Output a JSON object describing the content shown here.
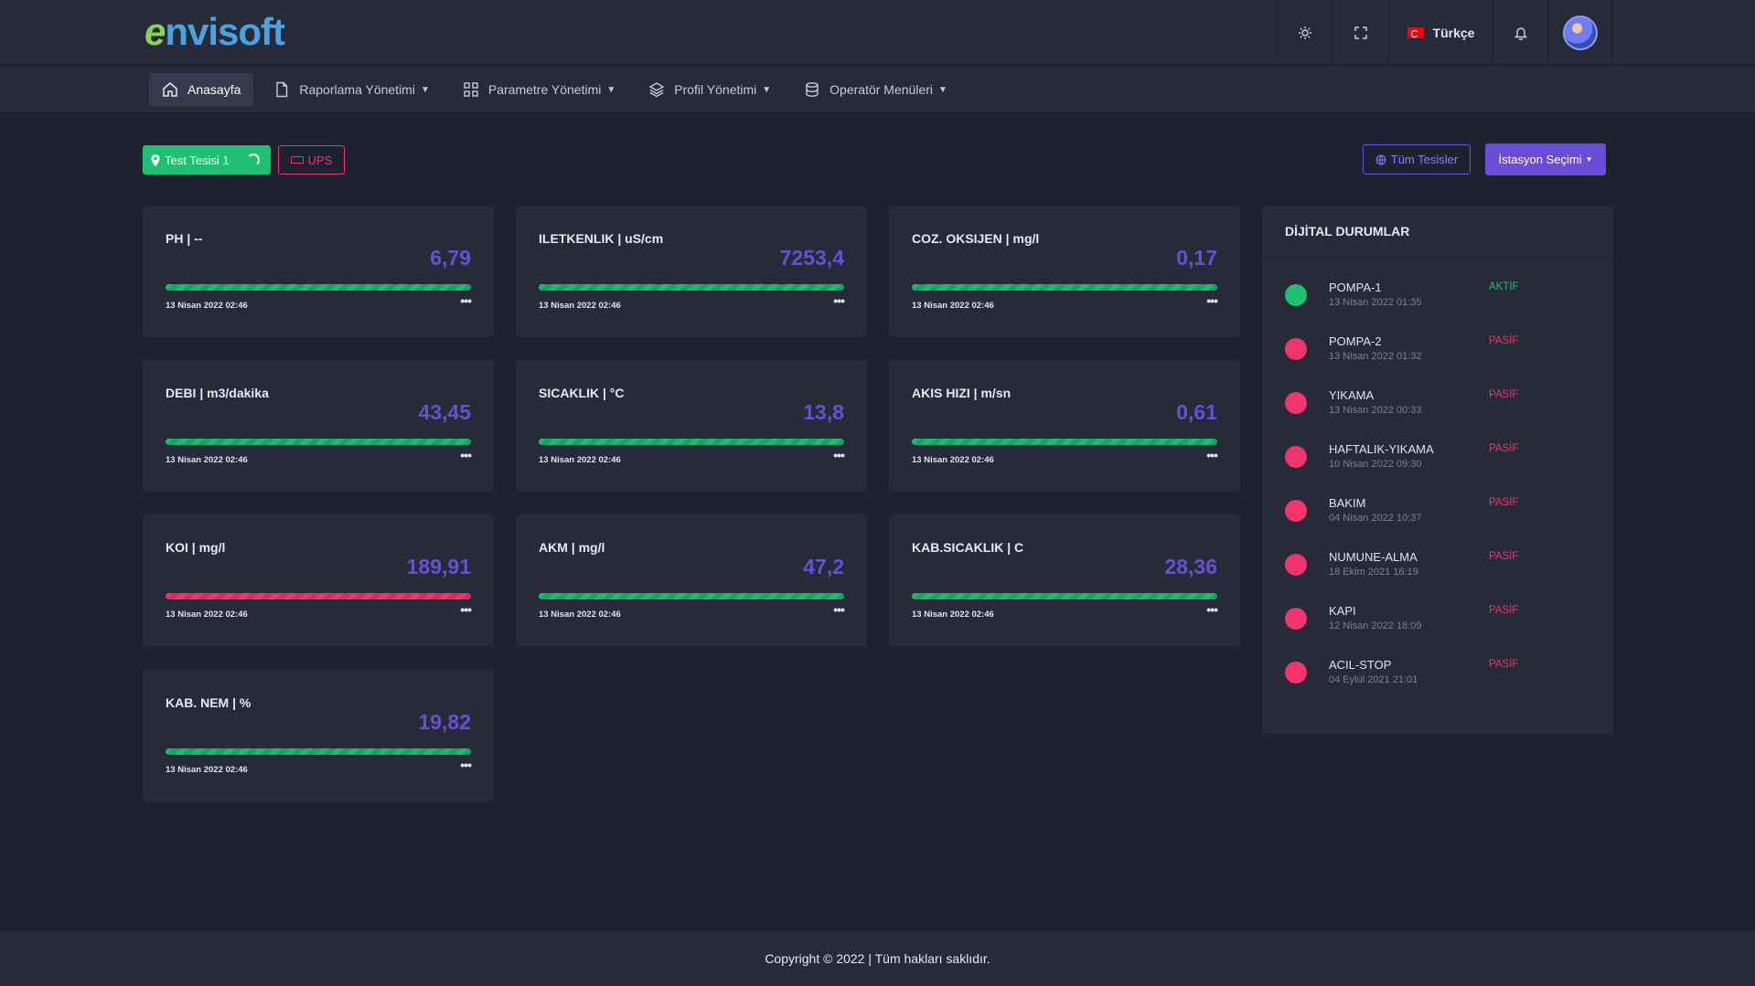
{
  "brand": {
    "logo_e": "e",
    "logo_rest": "nvisoft"
  },
  "topbar": {
    "language": "Türkçe"
  },
  "nav": [
    {
      "label": "Anasayfa",
      "icon": "home-icon",
      "active": true
    },
    {
      "label": "Raporlama Yönetimi",
      "icon": "document-icon"
    },
    {
      "label": "Parametre Yönetimi",
      "icon": "grid-icon"
    },
    {
      "label": "Profil Yönetimi",
      "icon": "layers-icon"
    },
    {
      "label": "Operatör Menüleri",
      "icon": "database-icon"
    }
  ],
  "filters": {
    "facility": "Test Tesisi 1",
    "ups": "UPS",
    "all_facilities": "Tüm Tesisler",
    "station_select": "İstasyon Seçimi"
  },
  "cards": [
    {
      "title": "PH | --",
      "value": "6,79",
      "date": "13 Nisan 2022 02:46",
      "status": "ok"
    },
    {
      "title": "ILETKENLIK | uS/cm",
      "value": "7253,4",
      "date": "13 Nisan 2022 02:46",
      "status": "ok"
    },
    {
      "title": "COZ. OKSIJEN | mg/l",
      "value": "0,17",
      "date": "13 Nisan 2022 02:46",
      "status": "ok"
    },
    {
      "title": "DEBI | m3/dakika",
      "value": "43,45",
      "date": "13 Nisan 2022 02:46",
      "status": "ok"
    },
    {
      "title": "SICAKLIK | °C",
      "value": "13,8",
      "date": "13 Nisan 2022 02:46",
      "status": "ok"
    },
    {
      "title": "AKIS HIZI | m/sn",
      "value": "0,61",
      "date": "13 Nisan 2022 02:46",
      "status": "ok"
    },
    {
      "title": "KOI | mg/l",
      "value": "189,91",
      "date": "13 Nisan 2022 02:46",
      "status": "alarm"
    },
    {
      "title": "AKM | mg/l",
      "value": "47,2",
      "date": "13 Nisan 2022 02:46",
      "status": "ok"
    },
    {
      "title": "KAB.SICAKLIK | C",
      "value": "28,36",
      "date": "13 Nisan 2022 02:46",
      "status": "ok"
    },
    {
      "title": "KAB. NEM | %",
      "value": "19,82",
      "date": "13 Nisan 2022 02:46",
      "status": "ok"
    }
  ],
  "digital": {
    "title": "DİJİTAL DURUMLAR",
    "items": [
      {
        "name": "POMPA-1",
        "time": "13 Nisan 2022 01:35",
        "status": "AKTİF",
        "active": true
      },
      {
        "name": "POMPA-2",
        "time": "13 Nisan 2022 01:32",
        "status": "PASİF",
        "active": false
      },
      {
        "name": "YIKAMA",
        "time": "13 Nisan 2022 00:33",
        "status": "PASİF",
        "active": false
      },
      {
        "name": "HAFTALIK-YIKAMA",
        "time": "10 Nisan 2022 09:30",
        "status": "PASİF",
        "active": false
      },
      {
        "name": "BAKIM",
        "time": "04 Nisan 2022 10:37",
        "status": "PASİF",
        "active": false
      },
      {
        "name": "NUMUNE-ALMA",
        "time": "18 Ekim 2021 16:19",
        "status": "PASİF",
        "active": false
      },
      {
        "name": "KAPI",
        "time": "12 Nisan 2022 18:09",
        "status": "PASİF",
        "active": false
      },
      {
        "name": "ACIL-STOP",
        "time": "04 Eylül 2021 21:01",
        "status": "PASİF",
        "active": false
      }
    ]
  },
  "footer": {
    "text": "Copyright © 2022 | Tüm hakları saklıdır."
  },
  "colors": {
    "accent": "#6a4cd9",
    "ok": "#20c074",
    "alarm": "#f0346c",
    "bg": "#1d2130",
    "panel": "#262a39"
  }
}
